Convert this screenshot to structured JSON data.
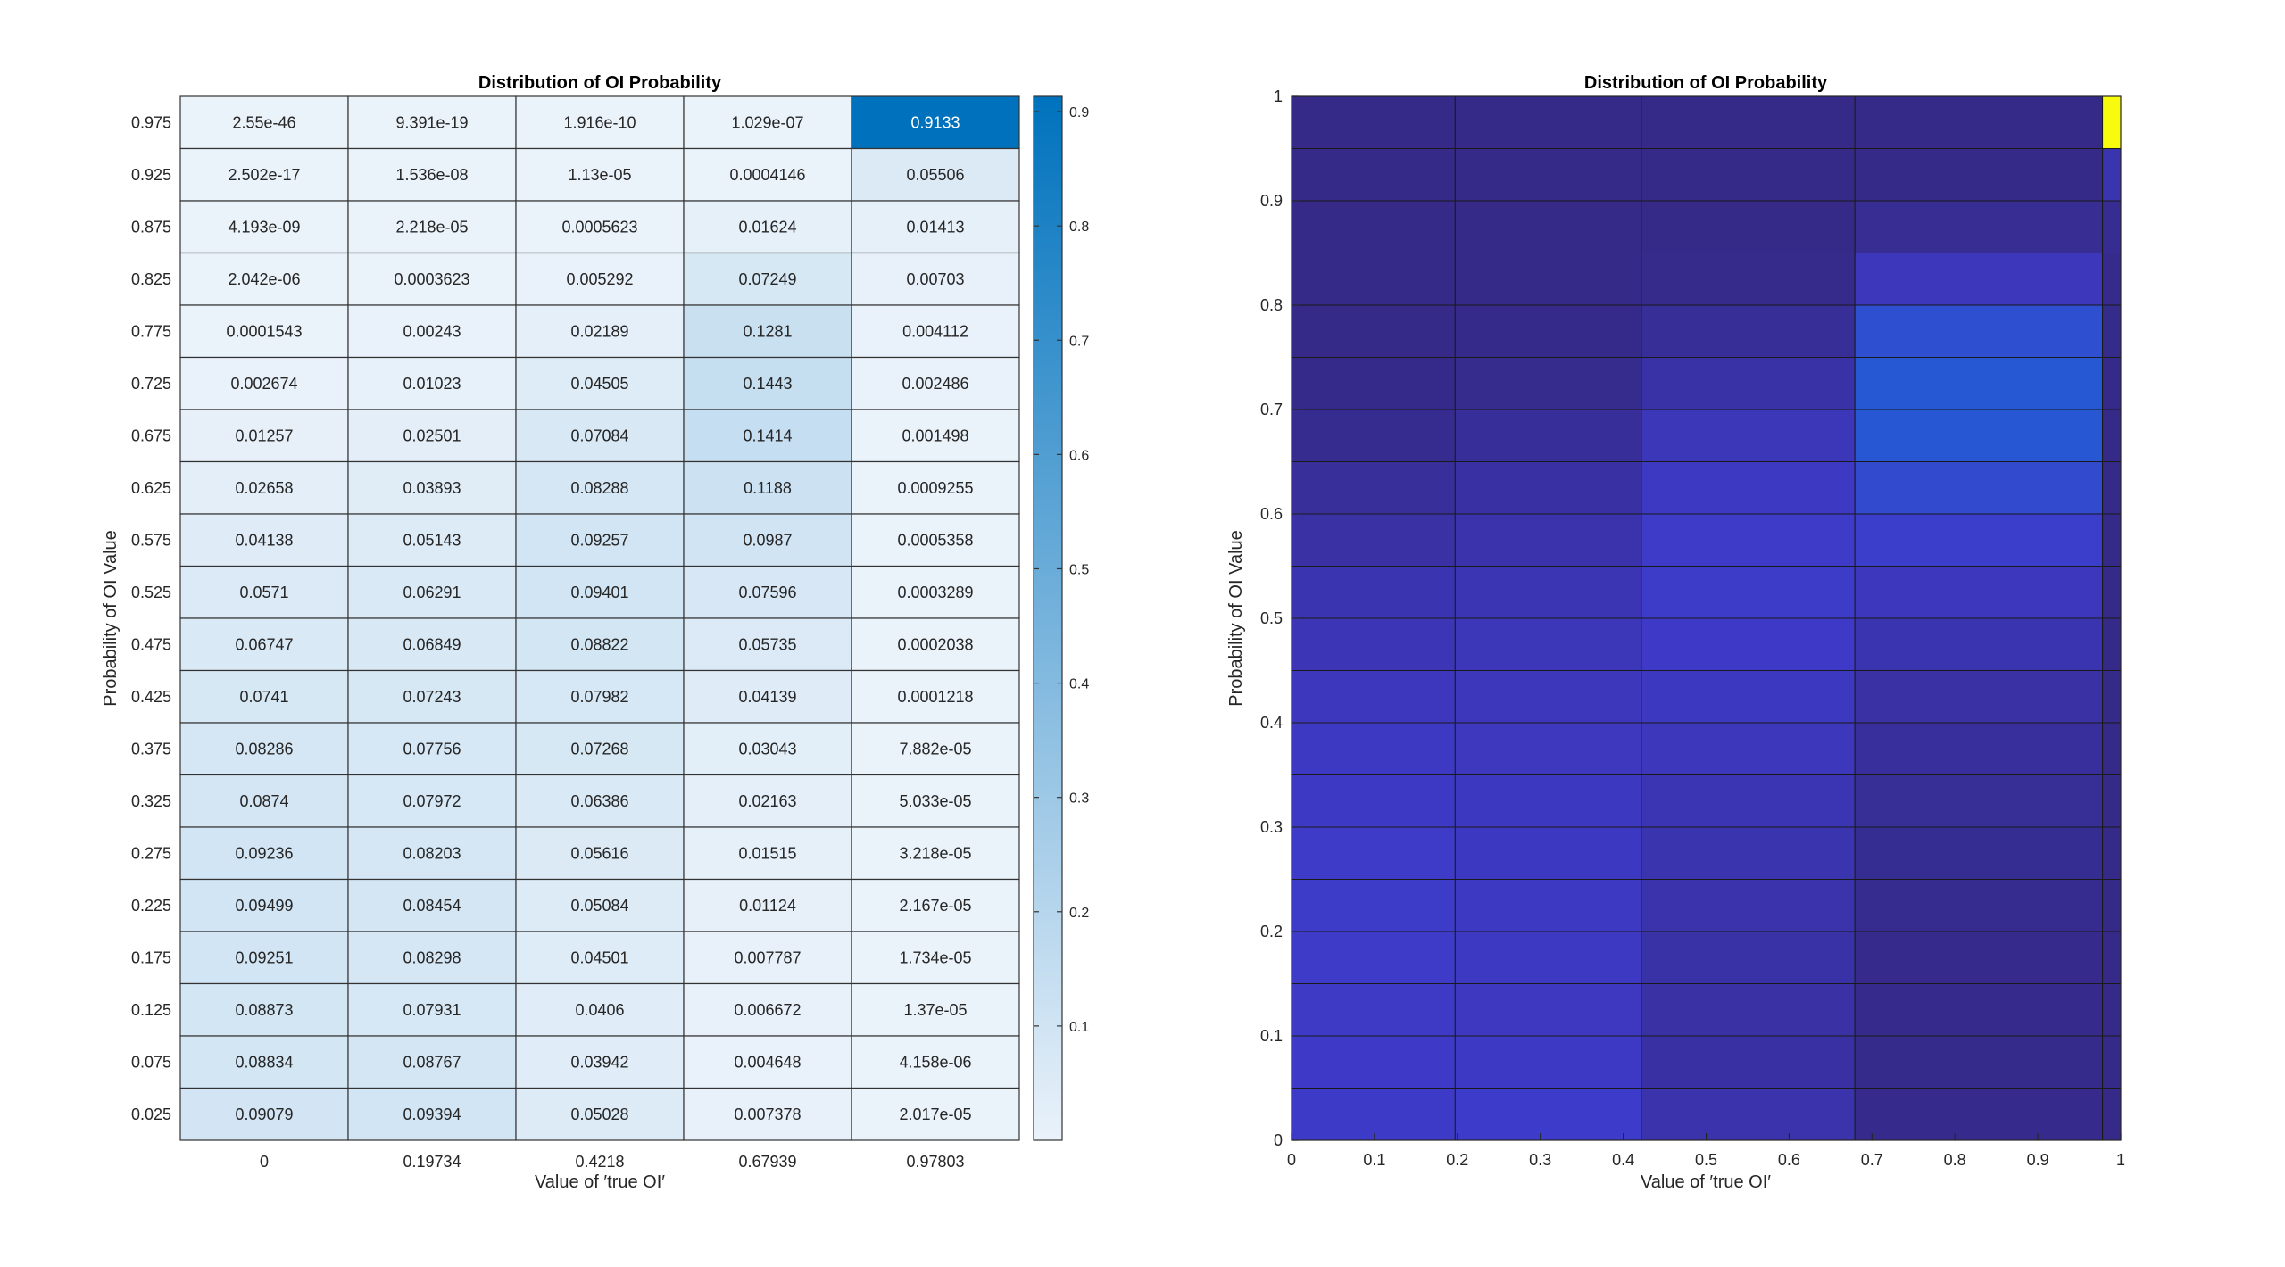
{
  "chart_data": [
    {
      "type": "heatmap",
      "title": "Distribution of OI Probability",
      "xlabel": "Value of ′true OI′",
      "ylabel": "Probability of OI Value",
      "x_categories": [
        "0",
        "0.19734",
        "0.4218",
        "0.67939",
        "0.97803"
      ],
      "y_categories": [
        "0.975",
        "0.925",
        "0.875",
        "0.825",
        "0.775",
        "0.725",
        "0.675",
        "0.625",
        "0.575",
        "0.525",
        "0.475",
        "0.425",
        "0.375",
        "0.325",
        "0.275",
        "0.225",
        "0.175",
        "0.125",
        "0.075",
        "0.025"
      ],
      "cells": [
        [
          "2.55e-46",
          "9.391e-19",
          "1.916e-10",
          "1.029e-07",
          "0.9133"
        ],
        [
          "2.502e-17",
          "1.536e-08",
          "1.13e-05",
          "0.0004146",
          "0.05506"
        ],
        [
          "4.193e-09",
          "2.218e-05",
          "0.0005623",
          "0.01624",
          "0.01413"
        ],
        [
          "2.042e-06",
          "0.0003623",
          "0.005292",
          "0.07249",
          "0.00703"
        ],
        [
          "0.0001543",
          "0.00243",
          "0.02189",
          "0.1281",
          "0.004112"
        ],
        [
          "0.002674",
          "0.01023",
          "0.04505",
          "0.1443",
          "0.002486"
        ],
        [
          "0.01257",
          "0.02501",
          "0.07084",
          "0.1414",
          "0.001498"
        ],
        [
          "0.02658",
          "0.03893",
          "0.08288",
          "0.1188",
          "0.0009255"
        ],
        [
          "0.04138",
          "0.05143",
          "0.09257",
          "0.0987",
          "0.0005358"
        ],
        [
          "0.0571",
          "0.06291",
          "0.09401",
          "0.07596",
          "0.0003289"
        ],
        [
          "0.06747",
          "0.06849",
          "0.08822",
          "0.05735",
          "0.0002038"
        ],
        [
          "0.0741",
          "0.07243",
          "0.07982",
          "0.04139",
          "0.0001218"
        ],
        [
          "0.08286",
          "0.07756",
          "0.07268",
          "0.03043",
          "7.882e-05"
        ],
        [
          "0.0874",
          "0.07972",
          "0.06386",
          "0.02163",
          "5.033e-05"
        ],
        [
          "0.09236",
          "0.08203",
          "0.05616",
          "0.01515",
          "3.218e-05"
        ],
        [
          "0.09499",
          "0.08454",
          "0.05084",
          "0.01124",
          "2.167e-05"
        ],
        [
          "0.09251",
          "0.08298",
          "0.04501",
          "0.007787",
          "1.734e-05"
        ],
        [
          "0.08873",
          "0.07931",
          "0.0406",
          "0.006672",
          "1.37e-05"
        ],
        [
          "0.08834",
          "0.08767",
          "0.03942",
          "0.004648",
          "4.158e-06"
        ],
        [
          "0.09079",
          "0.09394",
          "0.05028",
          "0.007378",
          "2.017e-05"
        ]
      ],
      "colorbar": {
        "ticks": [
          "0.1",
          "0.2",
          "0.3",
          "0.4",
          "0.5",
          "0.6",
          "0.7",
          "0.8",
          "0.9"
        ],
        "range": [
          0,
          0.9133
        ],
        "colormap": [
          "#eaf2fa",
          "#0072bd"
        ]
      },
      "highlight_text_color": "#ffffff"
    },
    {
      "type": "heatmap",
      "title": "Distribution of OI Probability",
      "xlabel": "Value of ′true OI′",
      "ylabel": "Probability of OI Value",
      "x_edges": [
        0,
        0.19734,
        0.4218,
        0.67939,
        0.97803,
        1
      ],
      "y_edges": [
        0,
        0.05,
        0.1,
        0.15,
        0.2,
        0.25,
        0.3,
        0.35,
        0.4,
        0.45,
        0.5,
        0.55,
        0.6,
        0.65,
        0.7,
        0.75,
        0.8,
        0.85,
        0.9,
        0.95,
        1
      ],
      "xlim": [
        0,
        1
      ],
      "ylim": [
        0,
        1
      ],
      "xticks": [
        "0",
        "0.1",
        "0.2",
        "0.3",
        "0.4",
        "0.5",
        "0.6",
        "0.7",
        "0.8",
        "0.9",
        "1"
      ],
      "yticks": [
        "0",
        "0.1",
        "0.2",
        "0.3",
        "0.4",
        "0.5",
        "0.6",
        "0.7",
        "0.8",
        "0.9",
        "1"
      ],
      "colormap": "parula",
      "values_source": "same cell values as the left heatmap",
      "grid_color": "#1a1a1a"
    }
  ]
}
